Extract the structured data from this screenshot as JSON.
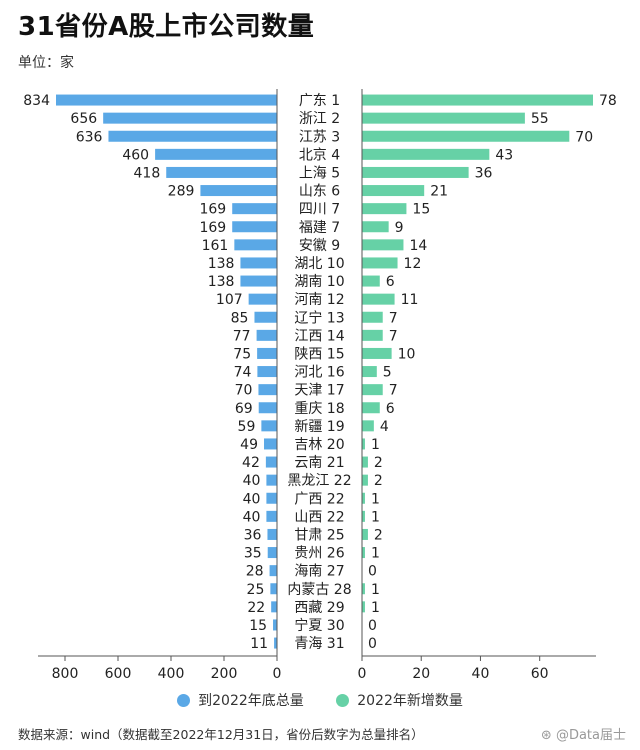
{
  "header": {
    "title": "31省份A股上市公司数量",
    "unit": "单位：家"
  },
  "colors": {
    "left": "#5aa8e6",
    "right": "#66d1a6"
  },
  "chart_data": {
    "type": "bar",
    "layout": "butterfly",
    "categories": [
      "广东 1",
      "浙江 2",
      "江苏 3",
      "北京 4",
      "上海 5",
      "山东 6",
      "四川 7",
      "福建 7",
      "安徽 9",
      "湖北 10",
      "湖南 10",
      "河南 12",
      "辽宁 13",
      "江西 14",
      "陕西 15",
      "河北 16",
      "天津 17",
      "重庆 18",
      "新疆 19",
      "吉林 20",
      "云南 21",
      "黑龙江 22",
      "广西 22",
      "山西 22",
      "甘肃 25",
      "贵州 26",
      "海南 27",
      "内蒙古 28",
      "西藏 29",
      "宁夏 30",
      "青海 31"
    ],
    "series": [
      {
        "name": "到2022年底总量",
        "values": [
          834,
          656,
          636,
          460,
          418,
          289,
          169,
          169,
          161,
          138,
          138,
          107,
          85,
          77,
          75,
          74,
          70,
          69,
          59,
          49,
          42,
          40,
          40,
          40,
          36,
          35,
          28,
          25,
          22,
          15,
          11
        ]
      },
      {
        "name": "2022年新增数量",
        "values": [
          78,
          55,
          70,
          43,
          36,
          21,
          15,
          9,
          14,
          12,
          6,
          11,
          7,
          7,
          10,
          5,
          7,
          6,
          4,
          1,
          2,
          2,
          1,
          1,
          2,
          1,
          0,
          1,
          1,
          0,
          0
        ]
      }
    ],
    "left_axis": {
      "ticks": [
        "800",
        "600",
        "400",
        "200",
        "0"
      ],
      "lim": [
        0,
        834
      ]
    },
    "right_axis": {
      "ticks": [
        "0",
        "20",
        "40",
        "60"
      ],
      "lim": [
        0,
        78
      ]
    }
  },
  "legend": {
    "left_label": "到2022年底总量",
    "right_label": "2022年新增数量"
  },
  "footer": {
    "source": "数据来源：wind（数据截至2022年12月31日，省份后数字为总量排名）",
    "watermark": "⊛ @Data届士"
  }
}
